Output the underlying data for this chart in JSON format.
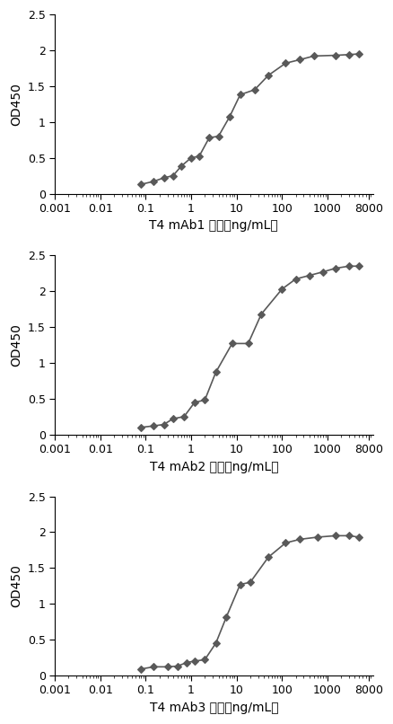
{
  "plots": [
    {
      "xlabel": "T4 mAb1 浓度（ng/mL）",
      "ylabel": "OD450",
      "x": [
        0.08,
        0.15,
        0.25,
        0.4,
        0.6,
        1.0,
        1.5,
        2.5,
        4,
        7,
        12,
        25,
        50,
        120,
        250,
        500,
        1500,
        3000,
        5000
      ],
      "y": [
        0.13,
        0.17,
        0.22,
        0.25,
        0.38,
        0.5,
        0.52,
        0.78,
        0.8,
        1.07,
        1.38,
        1.45,
        1.65,
        1.82,
        1.87,
        1.92,
        1.93,
        1.94,
        1.95
      ]
    },
    {
      "xlabel": "T4 mAb2 浓度（ng/mL）",
      "ylabel": "OD450",
      "x": [
        0.08,
        0.15,
        0.25,
        0.4,
        0.7,
        1.2,
        2.0,
        3.5,
        8,
        18,
        35,
        100,
        200,
        400,
        800,
        1500,
        3000,
        5000
      ],
      "y": [
        0.1,
        0.12,
        0.14,
        0.22,
        0.25,
        0.45,
        0.48,
        0.87,
        1.27,
        1.27,
        1.68,
        2.03,
        2.17,
        2.22,
        2.27,
        2.32,
        2.35,
        2.35
      ]
    },
    {
      "xlabel": "T4 mAb3 浓度（ng/mL）",
      "ylabel": "OD450",
      "x": [
        0.08,
        0.15,
        0.3,
        0.5,
        0.8,
        1.2,
        2.0,
        3.5,
        6,
        12,
        20,
        50,
        120,
        250,
        600,
        1500,
        3000,
        5000
      ],
      "y": [
        0.09,
        0.12,
        0.12,
        0.13,
        0.18,
        0.2,
        0.22,
        0.45,
        0.82,
        1.27,
        1.3,
        1.65,
        1.85,
        1.9,
        1.93,
        1.95,
        1.95,
        1.93
      ]
    }
  ],
  "ylim": [
    0,
    2.5
  ],
  "yticks": [
    0,
    0.5,
    1.0,
    1.5,
    2.0,
    2.5
  ],
  "xlim": [
    0.001,
    10000
  ],
  "xtick_labels": [
    "0.001",
    "0.01",
    "0.1",
    "1",
    "10",
    "100",
    "1000",
    "8000"
  ],
  "xtick_values": [
    0.001,
    0.01,
    0.1,
    1,
    10,
    100,
    1000,
    8000
  ],
  "line_color": "#595959",
  "marker_color": "#595959",
  "marker": "D",
  "marker_size": 4,
  "line_width": 1.2,
  "bg_color": "#ffffff",
  "xlabel_fontsize": 10,
  "ylabel_fontsize": 10,
  "tick_fontsize": 9
}
